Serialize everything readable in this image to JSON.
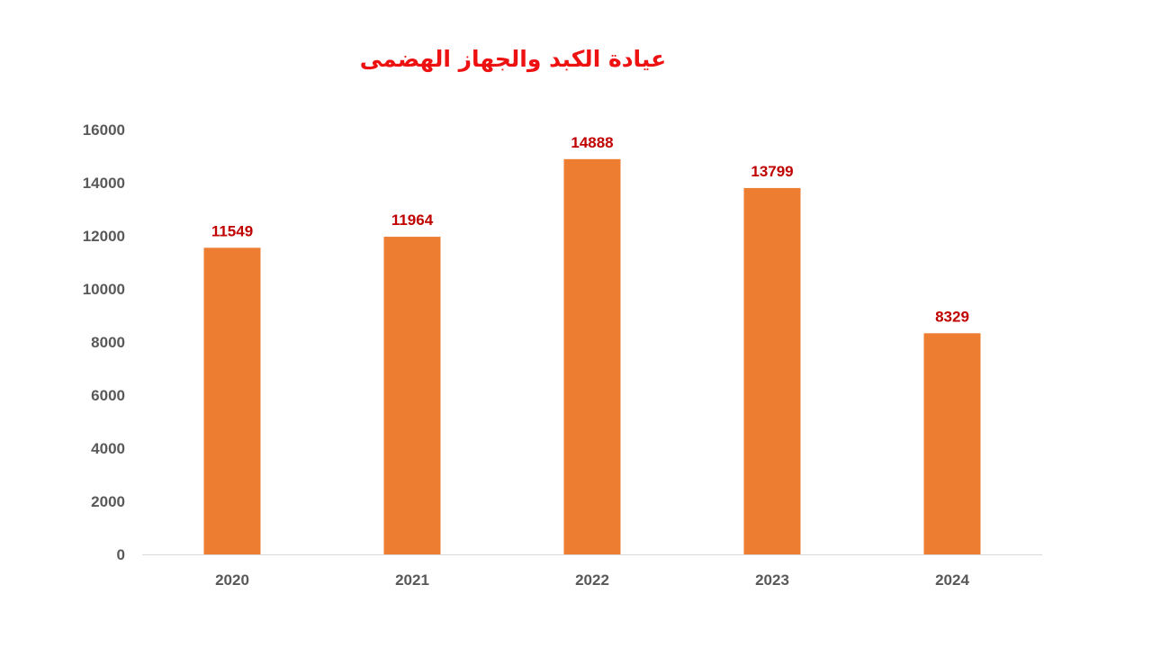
{
  "colors": {
    "title": "#ee1111",
    "bar": "#ed7d31",
    "data_label": "#c00000",
    "tick_label": "#595959",
    "axis_line": "#d9d9d9"
  },
  "chart_data": {
    "type": "bar",
    "title": "عيادة الكبد والجهاز الهضمى",
    "xlabel": "",
    "ylabel": "",
    "categories": [
      "2020",
      "2021",
      "2022",
      "2023",
      "2024"
    ],
    "values": [
      11549,
      11964,
      14888,
      13799,
      8329
    ],
    "data_labels": [
      "11549",
      "11964",
      "14888",
      "13799",
      "8329"
    ],
    "y_ticks": [
      "0",
      "2000",
      "4000",
      "6000",
      "8000",
      "10000",
      "12000",
      "14000",
      "16000"
    ],
    "ylim": [
      0,
      16000
    ],
    "grid": false,
    "legend": "none"
  }
}
